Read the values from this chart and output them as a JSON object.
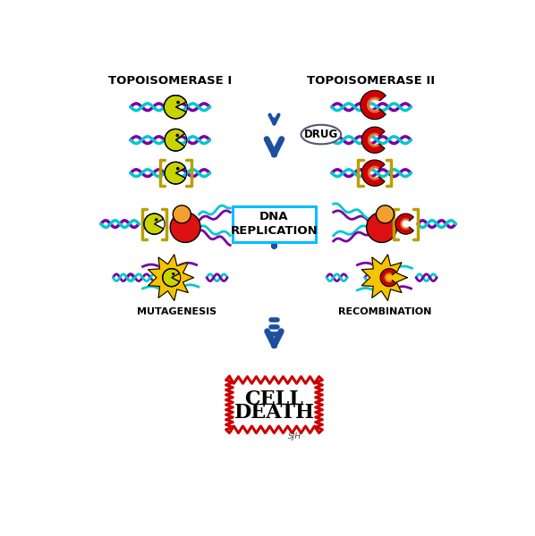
{
  "bg_color": "#ffffff",
  "top1_label": "TOPOISOMERASE I",
  "top2_label": "TOPOISOMERASE II",
  "drug_label": "DRUG",
  "dna_rep_label": "DNA\nREPLICATION",
  "mutagenesis_label": "MUTAGENESIS",
  "recombination_label": "RECOMBINATION",
  "cell_death_label": "CELL\nDEATH",
  "arrow_color": "#1c4fa0",
  "dna_color1": "#7700aa",
  "dna_color2": "#00c8d0",
  "top1_color": "#c8d400",
  "top2_color_outer": "#cc0000",
  "top2_color_inner": "#ff6688",
  "bracket_color": "#b8a000",
  "explosion_color": "#f5c400",
  "replication_border": "#00bfff",
  "cell_death_border": "#cc0000",
  "red_ball": "#dd1111",
  "orange_ball": "#f4a030",
  "signature": "SJH"
}
